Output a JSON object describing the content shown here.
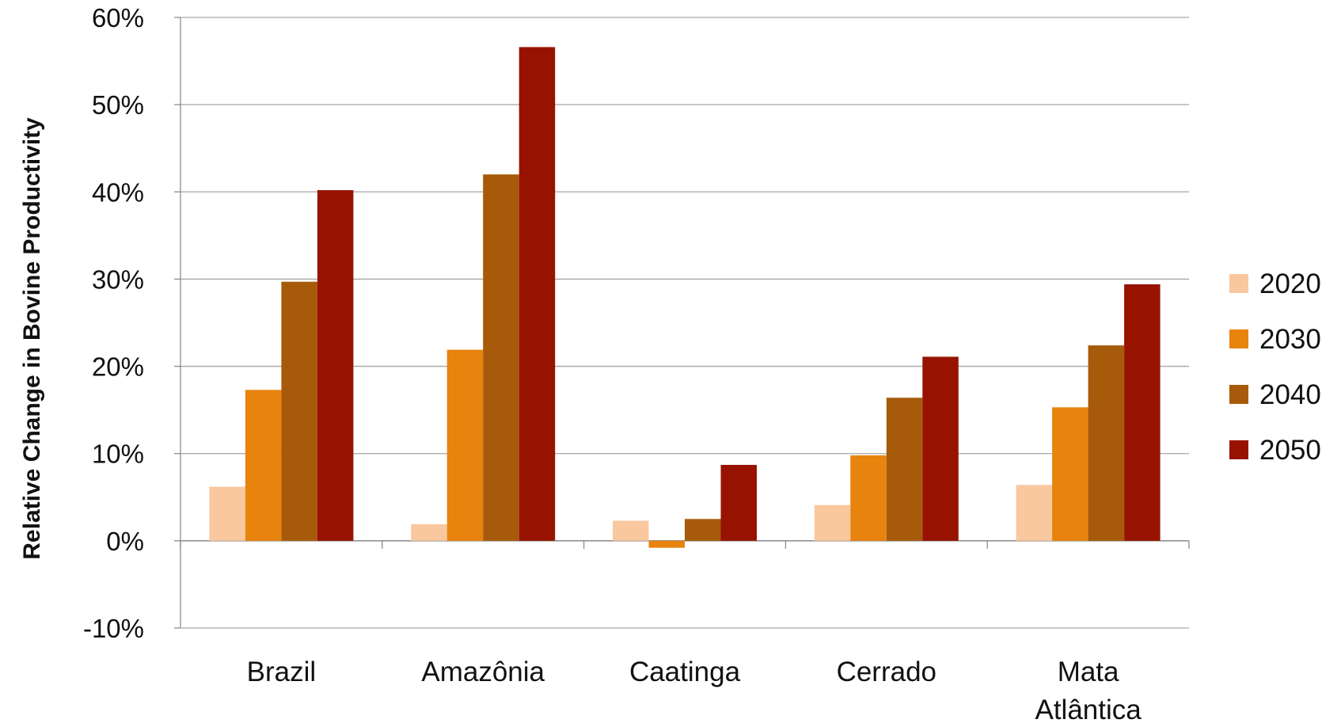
{
  "chart_data": {
    "type": "bar",
    "title": "",
    "xlabel": "",
    "ylabel": "Relative Change in Bovine Productivity",
    "ylim": [
      -10,
      60
    ],
    "yticks": [
      -10,
      0,
      10,
      20,
      30,
      40,
      50,
      60
    ],
    "ytick_labels": [
      "-10%",
      "0%",
      "10%",
      "20%",
      "30%",
      "40%",
      "50%",
      "60%"
    ],
    "categories": [
      [
        "Brazil"
      ],
      [
        "Amazônia"
      ],
      [
        "Caatinga"
      ],
      [
        "Cerrado"
      ],
      [
        "Mata",
        "Atlântica"
      ]
    ],
    "grid": "horizontal",
    "legend_position": "right",
    "series": [
      {
        "name": "2020",
        "color": "#F9C89E",
        "values": [
          6.2,
          1.9,
          2.3,
          4.1,
          6.4
        ]
      },
      {
        "name": "2030",
        "color": "#E8830E",
        "values": [
          17.3,
          21.9,
          -0.8,
          9.8,
          15.3
        ]
      },
      {
        "name": "2040",
        "color": "#A75A0A",
        "values": [
          29.7,
          42.0,
          2.5,
          16.4,
          22.4
        ]
      },
      {
        "name": "2050",
        "color": "#971300",
        "values": [
          40.2,
          56.6,
          8.7,
          21.1,
          29.4
        ]
      }
    ]
  }
}
